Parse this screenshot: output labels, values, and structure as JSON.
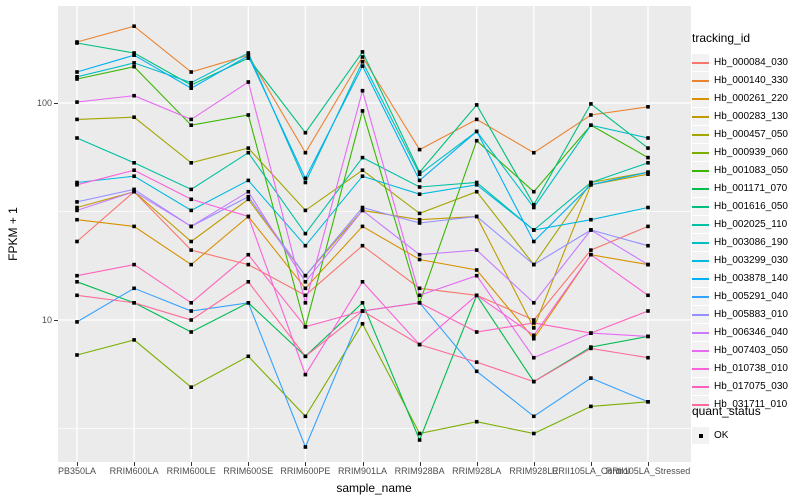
{
  "figure": {
    "background": "#FFFFFF",
    "panel_bg": "#EBEBEB",
    "grid_color": "#FFFFFF",
    "tick_color": "#333333",
    "axis_text_color": "#4D4D4D",
    "y_axis": {
      "title": "FPKM + 1",
      "tick_labels": [
        "100",
        "10"
      ],
      "tick_values": [
        100,
        10
      ]
    },
    "x_axis": {
      "title": "sample_name"
    },
    "legend": {
      "tracking_title": "tracking_id",
      "quant_title": "quant_status",
      "quant_ok_label": "OK",
      "key_bg": "#F2F2F2",
      "marker_color": "#000000"
    }
  },
  "chart_data": {
    "type": "line",
    "title": "",
    "xlabel": "sample_name",
    "ylabel": "FPKM + 1",
    "y_scale": "log10",
    "ylim": [
      2.2,
      280
    ],
    "grid": true,
    "legend_position": "right",
    "point_marker": {
      "shape": "square",
      "color": "#000000",
      "meaning": "quant_status OK"
    },
    "categories": [
      "PB350LA",
      "RRIM600LA",
      "RRIM600LE",
      "RRIM600SE",
      "RRIM600PE",
      "RRIM901LA",
      "RRIM928BA",
      "RRIM928LA",
      "RRIM928LE",
      "RRII105LA_Control",
      "RRII105LA_Stressed"
    ],
    "series": [
      {
        "name": "Hb_000084_030",
        "color": "#F8766D",
        "values": [
          23,
          39,
          21,
          18,
          13,
          22,
          14,
          13,
          10,
          21,
          27
        ]
      },
      {
        "name": "Hb_000140_330",
        "color": "#EA8331",
        "values": [
          191,
          226,
          139,
          166,
          59,
          163,
          61,
          84,
          59,
          88,
          96
        ]
      },
      {
        "name": "Hb_000261_220",
        "color": "#D89000",
        "values": [
          29,
          27,
          18,
          30,
          14,
          27,
          19,
          17,
          8.2,
          20,
          18
        ]
      },
      {
        "name": "Hb_000283_130",
        "color": "#C09B00",
        "values": [
          33,
          39,
          23,
          36,
          16,
          32,
          29,
          30,
          9.2,
          42,
          47
        ]
      },
      {
        "name": "Hb_000457_050",
        "color": "#A3A500",
        "values": [
          84,
          86,
          53,
          62,
          32,
          49,
          31,
          39,
          18,
          43,
          48
        ]
      },
      {
        "name": "Hb_000939_060",
        "color": "#7CAE00",
        "values": [
          6.9,
          8.1,
          4.9,
          6.8,
          3.6,
          9.6,
          3.0,
          3.4,
          3.0,
          4.0,
          4.2
        ]
      },
      {
        "name": "Hb_001083_050",
        "color": "#39B600",
        "values": [
          129,
          147,
          79,
          88,
          9.3,
          92,
          12,
          67,
          39,
          79,
          56
        ]
      },
      {
        "name": "Hb_001171_070",
        "color": "#00BB4E",
        "values": [
          15,
          12,
          8.8,
          12,
          6.8,
          12,
          2.8,
          13,
          5.2,
          7.5,
          8.4
        ]
      },
      {
        "name": "Hb_001616_050",
        "color": "#00BF7D",
        "values": [
          189,
          170,
          121,
          161,
          73,
          172,
          48,
          98,
          34,
          99,
          62
        ]
      },
      {
        "name": "Hb_002025_110",
        "color": "#00C1A3",
        "values": [
          69,
          53,
          40,
          59,
          25,
          56,
          41,
          43,
          26,
          43,
          53
        ]
      },
      {
        "name": "Hb_003086_190",
        "color": "#00BFC4",
        "values": [
          132,
          153,
          124,
          170,
          43,
          155,
          47,
          74,
          33,
          79,
          69
        ]
      },
      {
        "name": "Hb_003299_030",
        "color": "#00BAE0",
        "values": [
          43,
          46,
          32,
          44,
          22,
          46,
          38,
          42,
          26,
          29,
          33
        ]
      },
      {
        "name": "Hb_003878_140",
        "color": "#00B0F6",
        "values": [
          139,
          166,
          117,
          165,
          45,
          148,
          44,
          74,
          23,
          42,
          48
        ]
      },
      {
        "name": "Hb_005291_040",
        "color": "#35A2FF",
        "values": [
          9.8,
          14,
          11,
          12,
          2.6,
          11,
          12,
          5.8,
          3.6,
          5.4,
          4.2
        ]
      },
      {
        "name": "Hb_005883_010",
        "color": "#9590FF",
        "values": [
          35,
          40,
          27,
          37,
          16,
          33,
          28,
          30,
          18,
          26,
          22
        ]
      },
      {
        "name": "Hb_006346_040",
        "color": "#C77CFF",
        "values": [
          32,
          39,
          27,
          39,
          15,
          32,
          20,
          21,
          12,
          26,
          18
        ]
      },
      {
        "name": "Hb_007403_050",
        "color": "#E76BF3",
        "values": [
          101,
          108,
          84,
          125,
          12,
          114,
          13,
          16,
          6.7,
          8.7,
          8.4
        ]
      },
      {
        "name": "Hb_010738_010",
        "color": "#FA62DB",
        "values": [
          42,
          49,
          36,
          30,
          5.6,
          15,
          7.7,
          13,
          8.5,
          20,
          13
        ]
      },
      {
        "name": "Hb_017075_030",
        "color": "#FF62BC",
        "values": [
          16,
          18,
          12,
          20,
          9.3,
          11,
          12,
          8.8,
          9.7,
          8.7,
          11
        ]
      },
      {
        "name": "Hb_031711_010",
        "color": "#FF6A98",
        "values": [
          13,
          12,
          10,
          15,
          6.8,
          11,
          7.7,
          6.4,
          5.2,
          7.4,
          6.7
        ]
      }
    ]
  }
}
